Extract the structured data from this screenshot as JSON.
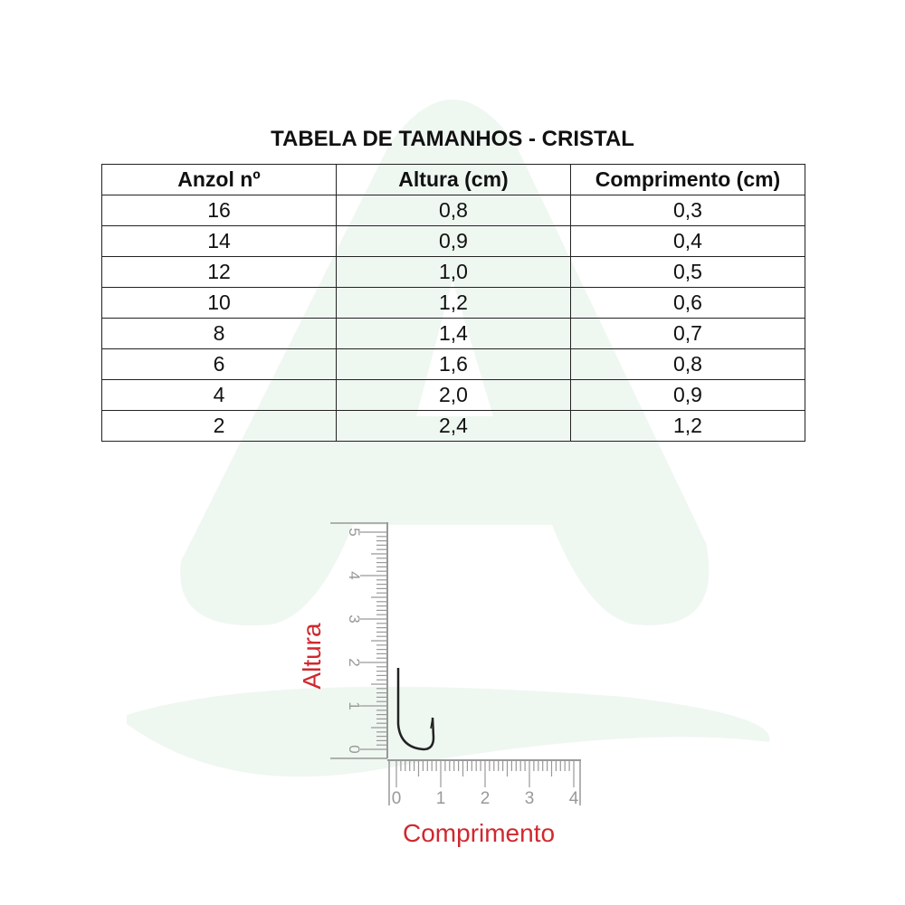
{
  "title": "TABELA DE TAMANHOS - CRISTAL",
  "table": {
    "headers": [
      "Anzol nº",
      "Altura (cm)",
      "Comprimento (cm)"
    ],
    "rows": [
      [
        "16",
        "0,8",
        "0,3"
      ],
      [
        "14",
        "0,9",
        "0,4"
      ],
      [
        "12",
        "1,0",
        "0,5"
      ],
      [
        "10",
        "1,2",
        "0,6"
      ],
      [
        "8",
        "1,4",
        "0,7"
      ],
      [
        "6",
        "1,6",
        "0,8"
      ],
      [
        "4",
        "2,0",
        "0,9"
      ],
      [
        "2",
        "2,4",
        "1,2"
      ]
    ]
  },
  "diagram": {
    "height_label": "Altura",
    "length_label": "Comprimento",
    "vertical_ticks": [
      "0",
      "1",
      "2",
      "3",
      "4",
      "5"
    ],
    "horizontal_ticks": [
      "0",
      "1",
      "2",
      "3",
      "4"
    ]
  },
  "colors": {
    "label": "#d0282e",
    "watermark": "#eff7f1"
  }
}
